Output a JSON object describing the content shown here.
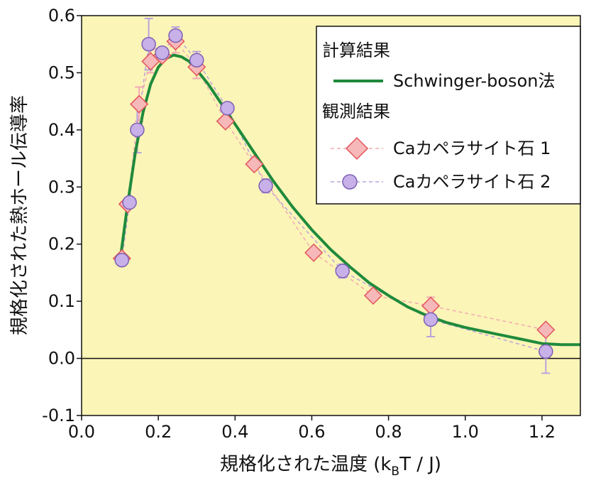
{
  "chart_data": {
    "type": "scatter",
    "xlabel": "規格化された温度 (k",
    "xlabel_sub": "B",
    "xlabel_tail": "T / J)",
    "ylabel": "規格化された熱ホール伝導率",
    "xlim": [
      0.0,
      1.3
    ],
    "ylim": [
      -0.1,
      0.6
    ],
    "xticks": [
      0.0,
      0.2,
      0.4,
      0.6,
      0.8,
      1.0,
      1.2
    ],
    "xtick_labels": [
      "0.0",
      "0.2",
      "0.4",
      "0.6",
      "0.8",
      "1.0",
      "1.2"
    ],
    "yticks": [
      -0.1,
      0.0,
      0.1,
      0.2,
      0.3,
      0.4,
      0.5,
      0.6
    ],
    "ytick_labels": [
      "-0.1",
      "0.0",
      "0.1",
      "0.2",
      "0.3",
      "0.4",
      "0.5",
      "0.6"
    ],
    "background_color": "#fbf5b7",
    "zero_line": true,
    "legend": {
      "position": "top-right",
      "header_theory": "計算結果",
      "header_obs": "観測結果"
    },
    "series": [
      {
        "name": "Schwinger-boson法",
        "kind": "line",
        "color": "#1f8a3c",
        "x": [
          0.1,
          0.12,
          0.14,
          0.16,
          0.18,
          0.2,
          0.22,
          0.24,
          0.26,
          0.28,
          0.3,
          0.33,
          0.36,
          0.4,
          0.45,
          0.5,
          0.55,
          0.6,
          0.65,
          0.7,
          0.75,
          0.8,
          0.85,
          0.9,
          0.95,
          1.0,
          1.05,
          1.1,
          1.15,
          1.2,
          1.25,
          1.3
        ],
        "y": [
          0.17,
          0.27,
          0.36,
          0.43,
          0.48,
          0.51,
          0.525,
          0.531,
          0.528,
          0.52,
          0.505,
          0.48,
          0.45,
          0.41,
          0.36,
          0.31,
          0.265,
          0.225,
          0.19,
          0.16,
          0.132,
          0.11,
          0.09,
          0.075,
          0.063,
          0.054,
          0.047,
          0.04,
          0.033,
          0.026,
          0.024,
          0.024
        ]
      },
      {
        "name": "Caカペラサイト石 1",
        "kind": "scatter",
        "marker": "diamond",
        "fill": "#f6b8b8",
        "stroke": "#e2545b",
        "line_color": "#f3aab4",
        "x": [
          0.105,
          0.12,
          0.15,
          0.18,
          0.21,
          0.245,
          0.3,
          0.375,
          0.45,
          0.605,
          0.76,
          0.91,
          1.21
        ],
        "y": [
          0.175,
          0.27,
          0.445,
          0.52,
          0.53,
          0.555,
          0.51,
          0.415,
          0.34,
          0.185,
          0.11,
          0.092,
          0.05
        ],
        "err": [
          0.0,
          0.0,
          0.03,
          0.02,
          0.0,
          0.02,
          0.02,
          0.0,
          0.0,
          0.0,
          0.0,
          0.015,
          0.0
        ]
      },
      {
        "name": "Caカペラサイト石 2",
        "kind": "scatter",
        "marker": "circle",
        "fill": "#c8b0e8",
        "stroke": "#7d60b5",
        "line_color": "#b9a3dc",
        "x": [
          0.105,
          0.125,
          0.145,
          0.175,
          0.21,
          0.245,
          0.3,
          0.38,
          0.48,
          0.68,
          0.91,
          1.21
        ],
        "y": [
          0.172,
          0.273,
          0.4,
          0.55,
          0.535,
          0.565,
          0.522,
          0.438,
          0.302,
          0.153,
          0.068,
          0.012
        ],
        "err": [
          0.0,
          0.0,
          0.04,
          0.045,
          0.0,
          0.015,
          0.015,
          0.0,
          0.012,
          0.012,
          0.03,
          0.038
        ]
      }
    ]
  }
}
